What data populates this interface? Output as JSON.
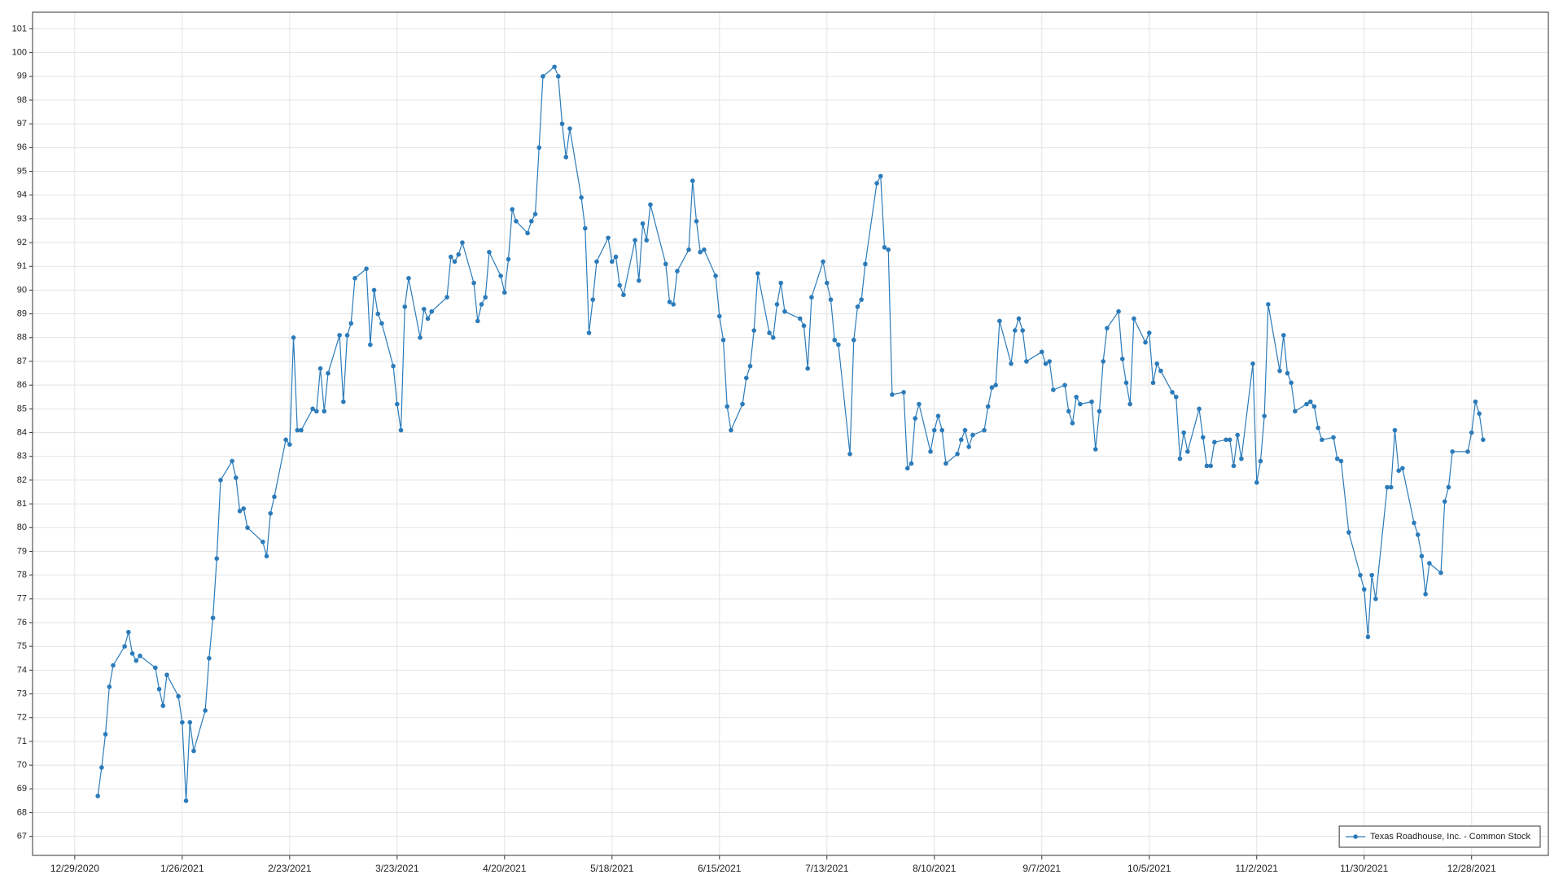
{
  "chart_data": {
    "type": "line",
    "x": [
      "2021-01-04",
      "2021-01-05",
      "2021-01-06",
      "2021-01-07",
      "2021-01-08",
      "2021-01-11",
      "2021-01-12",
      "2021-01-13",
      "2021-01-14",
      "2021-01-15",
      "2021-01-19",
      "2021-01-20",
      "2021-01-21",
      "2021-01-22",
      "2021-01-25",
      "2021-01-26",
      "2021-01-27",
      "2021-01-28",
      "2021-01-29",
      "2021-02-01",
      "2021-02-02",
      "2021-02-03",
      "2021-02-04",
      "2021-02-05",
      "2021-02-08",
      "2021-02-09",
      "2021-02-10",
      "2021-02-11",
      "2021-02-12",
      "2021-02-16",
      "2021-02-17",
      "2021-02-18",
      "2021-02-19",
      "2021-02-22",
      "2021-02-23",
      "2021-02-24",
      "2021-02-25",
      "2021-02-26",
      "2021-03-01",
      "2021-03-02",
      "2021-03-03",
      "2021-03-04",
      "2021-03-05",
      "2021-03-08",
      "2021-03-09",
      "2021-03-10",
      "2021-03-11",
      "2021-03-12",
      "2021-03-15",
      "2021-03-16",
      "2021-03-17",
      "2021-03-18",
      "2021-03-19",
      "2021-03-22",
      "2021-03-23",
      "2021-03-24",
      "2021-03-25",
      "2021-03-26",
      "2021-03-29",
      "2021-03-30",
      "2021-03-31",
      "2021-04-01",
      "2021-04-05",
      "2021-04-06",
      "2021-04-07",
      "2021-04-08",
      "2021-04-09",
      "2021-04-12",
      "2021-04-13",
      "2021-04-14",
      "2021-04-15",
      "2021-04-16",
      "2021-04-19",
      "2021-04-20",
      "2021-04-21",
      "2021-04-22",
      "2021-04-23",
      "2021-04-26",
      "2021-04-27",
      "2021-04-28",
      "2021-04-29",
      "2021-04-30",
      "2021-05-03",
      "2021-05-04",
      "2021-05-05",
      "2021-05-06",
      "2021-05-07",
      "2021-05-10",
      "2021-05-11",
      "2021-05-12",
      "2021-05-13",
      "2021-05-14",
      "2021-05-17",
      "2021-05-18",
      "2021-05-19",
      "2021-05-20",
      "2021-05-21",
      "2021-05-24",
      "2021-05-25",
      "2021-05-26",
      "2021-05-27",
      "2021-05-28",
      "2021-06-01",
      "2021-06-02",
      "2021-06-03",
      "2021-06-04",
      "2021-06-07",
      "2021-06-08",
      "2021-06-09",
      "2021-06-10",
      "2021-06-11",
      "2021-06-14",
      "2021-06-15",
      "2021-06-16",
      "2021-06-17",
      "2021-06-18",
      "2021-06-21",
      "2021-06-22",
      "2021-06-23",
      "2021-06-24",
      "2021-06-25",
      "2021-06-28",
      "2021-06-29",
      "2021-06-30",
      "2021-07-01",
      "2021-07-02",
      "2021-07-06",
      "2021-07-07",
      "2021-07-08",
      "2021-07-09",
      "2021-07-12",
      "2021-07-13",
      "2021-07-14",
      "2021-07-15",
      "2021-07-16",
      "2021-07-19",
      "2021-07-20",
      "2021-07-21",
      "2021-07-22",
      "2021-07-23",
      "2021-07-26",
      "2021-07-27",
      "2021-07-28",
      "2021-07-29",
      "2021-07-30",
      "2021-08-02",
      "2021-08-03",
      "2021-08-04",
      "2021-08-05",
      "2021-08-06",
      "2021-08-09",
      "2021-08-10",
      "2021-08-11",
      "2021-08-12",
      "2021-08-13",
      "2021-08-16",
      "2021-08-17",
      "2021-08-18",
      "2021-08-19",
      "2021-08-20",
      "2021-08-23",
      "2021-08-24",
      "2021-08-25",
      "2021-08-26",
      "2021-08-27",
      "2021-08-30",
      "2021-08-31",
      "2021-09-01",
      "2021-09-02",
      "2021-09-03",
      "2021-09-07",
      "2021-09-08",
      "2021-09-09",
      "2021-09-10",
      "2021-09-13",
      "2021-09-14",
      "2021-09-15",
      "2021-09-16",
      "2021-09-17",
      "2021-09-20",
      "2021-09-21",
      "2021-09-22",
      "2021-09-23",
      "2021-09-24",
      "2021-09-27",
      "2021-09-28",
      "2021-09-29",
      "2021-09-30",
      "2021-10-01",
      "2021-10-04",
      "2021-10-05",
      "2021-10-06",
      "2021-10-07",
      "2021-10-08",
      "2021-10-11",
      "2021-10-12",
      "2021-10-13",
      "2021-10-14",
      "2021-10-15",
      "2021-10-18",
      "2021-10-19",
      "2021-10-20",
      "2021-10-21",
      "2021-10-22",
      "2021-10-25",
      "2021-10-26",
      "2021-10-27",
      "2021-10-28",
      "2021-10-29",
      "2021-11-01",
      "2021-11-02",
      "2021-11-03",
      "2021-11-04",
      "2021-11-05",
      "2021-11-08",
      "2021-11-09",
      "2021-11-10",
      "2021-11-11",
      "2021-11-12",
      "2021-11-15",
      "2021-11-16",
      "2021-11-17",
      "2021-11-18",
      "2021-11-19",
      "2021-11-22",
      "2021-11-23",
      "2021-11-24",
      "2021-11-26",
      "2021-11-29",
      "2021-11-30",
      "2021-12-01",
      "2021-12-02",
      "2021-12-03",
      "2021-12-06",
      "2021-12-07",
      "2021-12-08",
      "2021-12-09",
      "2021-12-10",
      "2021-12-13",
      "2021-12-14",
      "2021-12-15",
      "2021-12-16",
      "2021-12-17",
      "2021-12-20",
      "2021-12-21",
      "2021-12-22",
      "2021-12-23",
      "2021-12-27",
      "2021-12-28",
      "2021-12-29",
      "2021-12-30",
      "2021-12-31"
    ],
    "series": [
      {
        "name": "Texas Roadhouse, Inc. - Common Stock",
        "color": "#2b7bba",
        "values": [
          68.7,
          69.9,
          71.3,
          73.3,
          74.2,
          75.0,
          75.6,
          74.7,
          74.4,
          74.6,
          74.1,
          73.2,
          72.5,
          73.8,
          72.9,
          71.8,
          68.5,
          71.8,
          70.6,
          72.3,
          74.5,
          76.2,
          78.7,
          82.0,
          82.8,
          82.1,
          80.7,
          80.8,
          80.0,
          79.4,
          78.8,
          80.6,
          81.3,
          83.7,
          83.5,
          88.0,
          84.1,
          84.1,
          85.0,
          84.9,
          86.7,
          84.9,
          86.5,
          88.1,
          85.3,
          88.1,
          88.6,
          90.5,
          90.9,
          87.7,
          90.0,
          89.0,
          88.6,
          86.8,
          85.2,
          84.1,
          89.3,
          90.5,
          88.0,
          89.2,
          88.8,
          89.1,
          89.7,
          91.4,
          91.2,
          91.5,
          92.0,
          90.3,
          88.7,
          89.4,
          89.7,
          91.6,
          90.6,
          89.9,
          91.3,
          93.4,
          92.9,
          92.4,
          92.9,
          93.2,
          96.0,
          99.0,
          99.4,
          99.0,
          97.0,
          95.6,
          96.8,
          93.9,
          92.6,
          88.2,
          89.6,
          91.2,
          92.2,
          91.2,
          91.4,
          90.2,
          89.8,
          92.1,
          90.4,
          92.8,
          92.1,
          93.6,
          91.1,
          89.5,
          89.4,
          90.8,
          91.7,
          94.6,
          92.9,
          91.6,
          91.7,
          90.6,
          88.9,
          87.9,
          85.1,
          84.1,
          85.2,
          86.3,
          86.8,
          88.3,
          90.7,
          88.2,
          88.0,
          89.4,
          90.3,
          89.1,
          88.8,
          88.5,
          86.7,
          89.7,
          91.2,
          90.3,
          89.6,
          87.9,
          87.7,
          83.1,
          87.9,
          89.3,
          89.6,
          91.1,
          94.5,
          94.8,
          91.8,
          91.7,
          85.6,
          85.7,
          82.5,
          82.7,
          84.6,
          85.2,
          83.2,
          84.1,
          84.7,
          84.1,
          82.7,
          83.1,
          83.7,
          84.1,
          83.4,
          83.9,
          84.1,
          85.1,
          85.9,
          86.0,
          88.7,
          86.9,
          88.3,
          88.8,
          88.3,
          87.0,
          87.4,
          86.9,
          87.0,
          85.8,
          86.0,
          84.9,
          84.4,
          85.5,
          85.2,
          85.3,
          83.3,
          84.9,
          87.0,
          88.4,
          89.1,
          87.1,
          86.1,
          85.2,
          88.8,
          87.8,
          88.2,
          86.1,
          86.9,
          86.6,
          85.7,
          85.5,
          82.9,
          84.0,
          83.2,
          85.0,
          83.8,
          82.6,
          82.6,
          83.6,
          83.7,
          83.7,
          82.6,
          83.9,
          82.9,
          86.9,
          81.9,
          82.8,
          84.7,
          89.4,
          86.6,
          88.1,
          86.5,
          86.1,
          84.9,
          85.2,
          85.3,
          85.1,
          84.2,
          83.7,
          83.8,
          82.9,
          82.8,
          79.8,
          78.0,
          77.4,
          75.4,
          78.0,
          77.0,
          81.7,
          81.7,
          84.1,
          82.4,
          82.5,
          80.2,
          79.7,
          78.8,
          77.2,
          78.5,
          78.1,
          81.1,
          81.7,
          83.2,
          83.2,
          84.0,
          85.3,
          84.8,
          83.7
        ]
      }
    ],
    "xlim": [
      "2020-12-18",
      "2022-01-17"
    ],
    "xticks": [
      {
        "value": "2020-12-29",
        "label": "12/29/2020"
      },
      {
        "value": "2021-01-26",
        "label": "1/26/2021"
      },
      {
        "value": "2021-02-23",
        "label": "2/23/2021"
      },
      {
        "value": "2021-03-23",
        "label": "3/23/2021"
      },
      {
        "value": "2021-04-20",
        "label": "4/20/2021"
      },
      {
        "value": "2021-05-18",
        "label": "5/18/2021"
      },
      {
        "value": "2021-06-15",
        "label": "6/15/2021"
      },
      {
        "value": "2021-07-13",
        "label": "7/13/2021"
      },
      {
        "value": "2021-08-10",
        "label": "8/10/2021"
      },
      {
        "value": "2021-09-07",
        "label": "9/7/2021"
      },
      {
        "value": "2021-10-05",
        "label": "10/5/2021"
      },
      {
        "value": "2021-11-02",
        "label": "11/2/2021"
      },
      {
        "value": "2021-11-30",
        "label": "11/30/2021"
      },
      {
        "value": "2021-12-28",
        "label": "12/28/2021"
      }
    ],
    "ylim": [
      66.2,
      101.7
    ],
    "yticks": [
      67,
      68,
      69,
      70,
      71,
      72,
      73,
      74,
      75,
      76,
      77,
      78,
      79,
      80,
      81,
      82,
      83,
      84,
      85,
      86,
      87,
      88,
      89,
      90,
      91,
      92,
      93,
      94,
      95,
      96,
      97,
      98,
      99,
      100,
      101
    ],
    "grid": true,
    "legend": "lower right"
  }
}
